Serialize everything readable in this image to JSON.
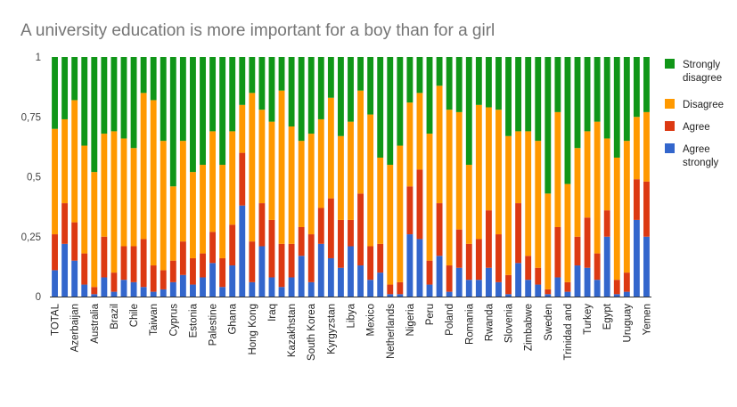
{
  "chart_data": {
    "type": "bar",
    "stacked": true,
    "title": "A university education is more important for a boy than for a girl",
    "xlabel": "",
    "ylabel": "",
    "ylim": [
      0,
      1
    ],
    "yticks": [
      {
        "value": 0,
        "label": "0"
      },
      {
        "value": 0.25,
        "label": "0,25"
      },
      {
        "value": 0.5,
        "label": "0,5"
      },
      {
        "value": 0.75,
        "label": "0,75"
      },
      {
        "value": 1,
        "label": "1"
      }
    ],
    "grid": false,
    "legend_position": "right",
    "legend_order": [
      "Strongly disagree",
      "Disagree",
      "Agree",
      "Agree strongly"
    ],
    "categories": [
      "TOTAL",
      "",
      "Azerbaijan",
      "",
      "Australia",
      "",
      "Brazil",
      "",
      "Chile",
      "",
      "Taiwan",
      "",
      "Cyprus",
      "",
      "Estonia",
      "",
      "Palestine",
      "",
      "Ghana",
      "",
      "Hong Kong",
      "",
      "Iraq",
      "",
      "Kazakhstan",
      "",
      "South Korea",
      "",
      "Kyrgyzstan",
      "",
      "Libya",
      "",
      "Mexico",
      "",
      "Netherlands",
      "",
      "Nigeria",
      "",
      "Peru",
      "",
      "Poland",
      "",
      "Romania",
      "",
      "Rwanda",
      "",
      "Slovenia",
      "",
      "Zimbabwe",
      "",
      "Sweden",
      "",
      "Trinidad and",
      "",
      "Turkey",
      "",
      "Egypt",
      "",
      "Uruguay",
      "",
      "Yemen"
    ],
    "series": [
      {
        "name": "Agree strongly",
        "color": "#3366cc",
        "values": [
          0.11,
          0.22,
          0.15,
          0.05,
          0.01,
          0.08,
          0.02,
          0.07,
          0.06,
          0.04,
          0.02,
          0.03,
          0.06,
          0.09,
          0.05,
          0.08,
          0.14,
          0.04,
          0.13,
          0.38,
          0.06,
          0.21,
          0.08,
          0.04,
          0.08,
          0.17,
          0.06,
          0.22,
          0.16,
          0.12,
          0.21,
          0.13,
          0.07,
          0.1,
          0.01,
          0.01,
          0.26,
          0.24,
          0.05,
          0.17,
          0.02,
          0.12,
          0.07,
          0.07,
          0.12,
          0.06,
          0.01,
          0.14,
          0.07,
          0.05,
          0.01,
          0.08,
          0.02,
          0.13,
          0.12,
          0.07,
          0.25,
          0.01,
          0.02,
          0.32,
          0.25
        ]
      },
      {
        "name": "Agree",
        "color": "#dc3912",
        "values": [
          0.15,
          0.17,
          0.16,
          0.13,
          0.03,
          0.17,
          0.08,
          0.14,
          0.15,
          0.2,
          0.11,
          0.08,
          0.09,
          0.14,
          0.11,
          0.1,
          0.13,
          0.12,
          0.17,
          0.22,
          0.17,
          0.18,
          0.24,
          0.18,
          0.14,
          0.12,
          0.2,
          0.15,
          0.25,
          0.2,
          0.11,
          0.3,
          0.14,
          0.12,
          0.04,
          0.05,
          0.2,
          0.29,
          0.1,
          0.22,
          0.11,
          0.16,
          0.15,
          0.17,
          0.24,
          0.2,
          0.08,
          0.25,
          0.1,
          0.07,
          0.02,
          0.21,
          0.04,
          0.12,
          0.21,
          0.11,
          0.11,
          0.06,
          0.08,
          0.17,
          0.23
        ]
      },
      {
        "name": "Disagree",
        "color": "#ff9900",
        "values": [
          0.44,
          0.35,
          0.51,
          0.45,
          0.48,
          0.43,
          0.59,
          0.45,
          0.41,
          0.61,
          0.69,
          0.54,
          0.31,
          0.42,
          0.36,
          0.37,
          0.42,
          0.39,
          0.39,
          0.2,
          0.62,
          0.39,
          0.41,
          0.64,
          0.49,
          0.36,
          0.42,
          0.37,
          0.42,
          0.35,
          0.41,
          0.43,
          0.55,
          0.36,
          0.5,
          0.57,
          0.35,
          0.32,
          0.53,
          0.49,
          0.65,
          0.49,
          0.33,
          0.56,
          0.43,
          0.52,
          0.58,
          0.3,
          0.52,
          0.53,
          0.4,
          0.48,
          0.41,
          0.37,
          0.36,
          0.55,
          0.3,
          0.51,
          0.55,
          0.26,
          0.29
        ]
      },
      {
        "name": "Strongly disagree",
        "color": "#109618",
        "values": [
          0.3,
          0.26,
          0.18,
          0.37,
          0.48,
          0.32,
          0.31,
          0.34,
          0.38,
          0.15,
          0.18,
          0.35,
          0.54,
          0.35,
          0.48,
          0.45,
          0.31,
          0.45,
          0.31,
          0.2,
          0.15,
          0.22,
          0.27,
          0.14,
          0.29,
          0.35,
          0.32,
          0.26,
          0.17,
          0.33,
          0.27,
          0.14,
          0.24,
          0.42,
          0.45,
          0.37,
          0.19,
          0.15,
          0.32,
          0.12,
          0.22,
          0.23,
          0.45,
          0.2,
          0.21,
          0.22,
          0.33,
          0.31,
          0.31,
          0.35,
          0.57,
          0.23,
          0.53,
          0.38,
          0.31,
          0.27,
          0.34,
          0.42,
          0.35,
          0.25,
          0.23
        ]
      }
    ]
  }
}
